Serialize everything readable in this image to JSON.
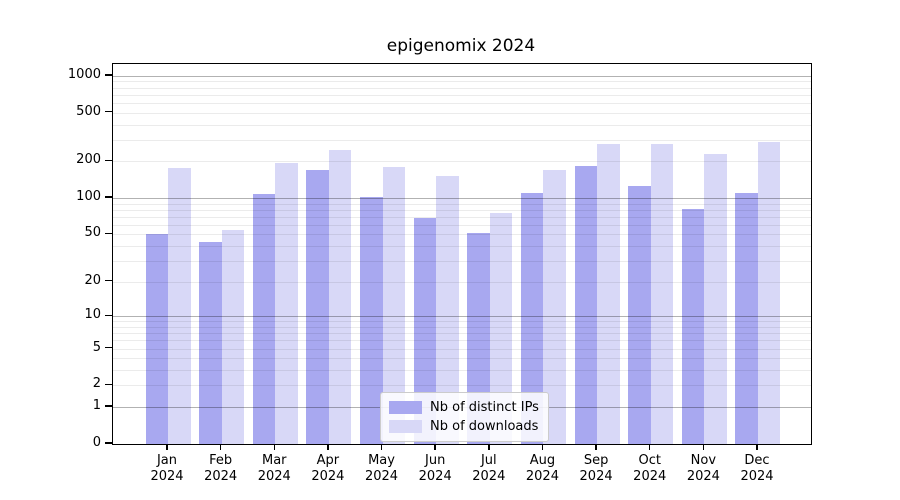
{
  "title": "epigenomix 2024",
  "chart_data": {
    "type": "bar",
    "title": "epigenomix 2024",
    "categories": [
      "Jan",
      "Feb",
      "Mar",
      "Apr",
      "May",
      "Jun",
      "Jul",
      "Aug",
      "Sep",
      "Oct",
      "Nov",
      "Dec"
    ],
    "x_year_label": "2024",
    "series": [
      {
        "name": "Nb of distinct IPs",
        "color": "#a8a8f0",
        "values": [
          50,
          43,
          108,
          170,
          102,
          68,
          51,
          110,
          185,
          126,
          82,
          110
        ]
      },
      {
        "name": "Nb of downloads",
        "color": "#d8d8f7",
        "values": [
          175,
          54,
          195,
          250,
          180,
          152,
          76,
          170,
          280,
          280,
          230,
          290
        ]
      }
    ],
    "y_ticks": [
      0,
      1,
      2,
      5,
      10,
      20,
      50,
      100,
      200,
      500,
      1000
    ],
    "y_scale": "log1p",
    "ylim": [
      0,
      1240
    ],
    "xlabel": "",
    "ylabel": "",
    "grid": true,
    "legend_position": "lower-center",
    "axis_color": "#000000",
    "background_color": "#ffffff"
  }
}
